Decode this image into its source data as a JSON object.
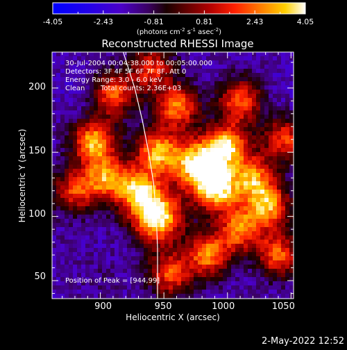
{
  "chart_data": {
    "type": "heatmap",
    "title": "Reconstructed RHESSI Image",
    "xlabel": "Heliocentric X (arcsec)",
    "ylabel": "Heliocentric Y (arcsec)",
    "xlim": [
      862,
      1052
    ],
    "ylim": [
      36,
      228
    ],
    "xticks": [
      "900",
      "950",
      "1000",
      "1050"
    ],
    "yticks": [
      "50",
      "100",
      "150",
      "200"
    ],
    "colorbar": {
      "ticks": [
        "-4.05",
        "-2.43",
        "-0.81",
        "0.81",
        "2.43",
        "4.05"
      ],
      "range": [
        -4.05,
        4.05
      ],
      "unit": "(photons cm",
      "unit_sup1": "-2",
      "unit_mid": " s",
      "unit_sup2": "-1",
      "unit_end": " asec",
      "unit_sup3": "-2",
      "unit_close": ")"
    },
    "annotations": {
      "line1": "30-Jul-2004 00:04:38.000 to 00:05:00.000",
      "line2": "Detectors: 3F 4F 5F 6F 7F 8F, Att 0",
      "line3": "Energy Range: 3.0 - 6.0 keV",
      "line4_a": "Clean",
      "line4_b": "Total counts: 2.36E+03",
      "peak": "Position of Peak = [944,99]"
    },
    "limb": [
      [
        918,
        228
      ],
      [
        927,
        200
      ],
      [
        933,
        175
      ],
      [
        938,
        150
      ],
      [
        942,
        125
      ],
      [
        944,
        100
      ],
      [
        945,
        75
      ],
      [
        945,
        50
      ],
      [
        945,
        36
      ]
    ],
    "blobs": [
      {
        "x": 977,
        "y": 140,
        "v": 4.0
      },
      {
        "x": 945,
        "y": 99,
        "v": 4.05
      },
      {
        "x": 945,
        "y": 150,
        "v": 3.0
      },
      {
        "x": 895,
        "y": 158,
        "v": 3.2
      },
      {
        "x": 930,
        "y": 120,
        "v": 2.9
      },
      {
        "x": 992,
        "y": 120,
        "v": 3.2
      },
      {
        "x": 1000,
        "y": 155,
        "v": 3.1
      },
      {
        "x": 960,
        "y": 185,
        "v": 2.6
      },
      {
        "x": 1010,
        "y": 190,
        "v": 2.3
      },
      {
        "x": 910,
        "y": 195,
        "v": 2.2
      },
      {
        "x": 1032,
        "y": 108,
        "v": 2.8
      },
      {
        "x": 1010,
        "y": 90,
        "v": 2.4
      },
      {
        "x": 1040,
        "y": 70,
        "v": 2.2
      },
      {
        "x": 985,
        "y": 70,
        "v": 2.6
      },
      {
        "x": 955,
        "y": 55,
        "v": 2.0
      },
      {
        "x": 1020,
        "y": 130,
        "v": 2.5
      },
      {
        "x": 880,
        "y": 120,
        "v": 1.8
      },
      {
        "x": 905,
        "y": 130,
        "v": 2.5
      },
      {
        "x": 940,
        "y": 215,
        "v": 1.7
      },
      {
        "x": 1045,
        "y": 160,
        "v": 1.9
      },
      {
        "x": 872,
        "y": 75,
        "v": -1.5
      },
      {
        "x": 880,
        "y": 200,
        "v": -2.0
      },
      {
        "x": 1045,
        "y": 205,
        "v": -1.8
      },
      {
        "x": 900,
        "y": 50,
        "v": -1.2
      }
    ]
  },
  "footer": {
    "timestamp": "2-May-2022 12:52"
  }
}
